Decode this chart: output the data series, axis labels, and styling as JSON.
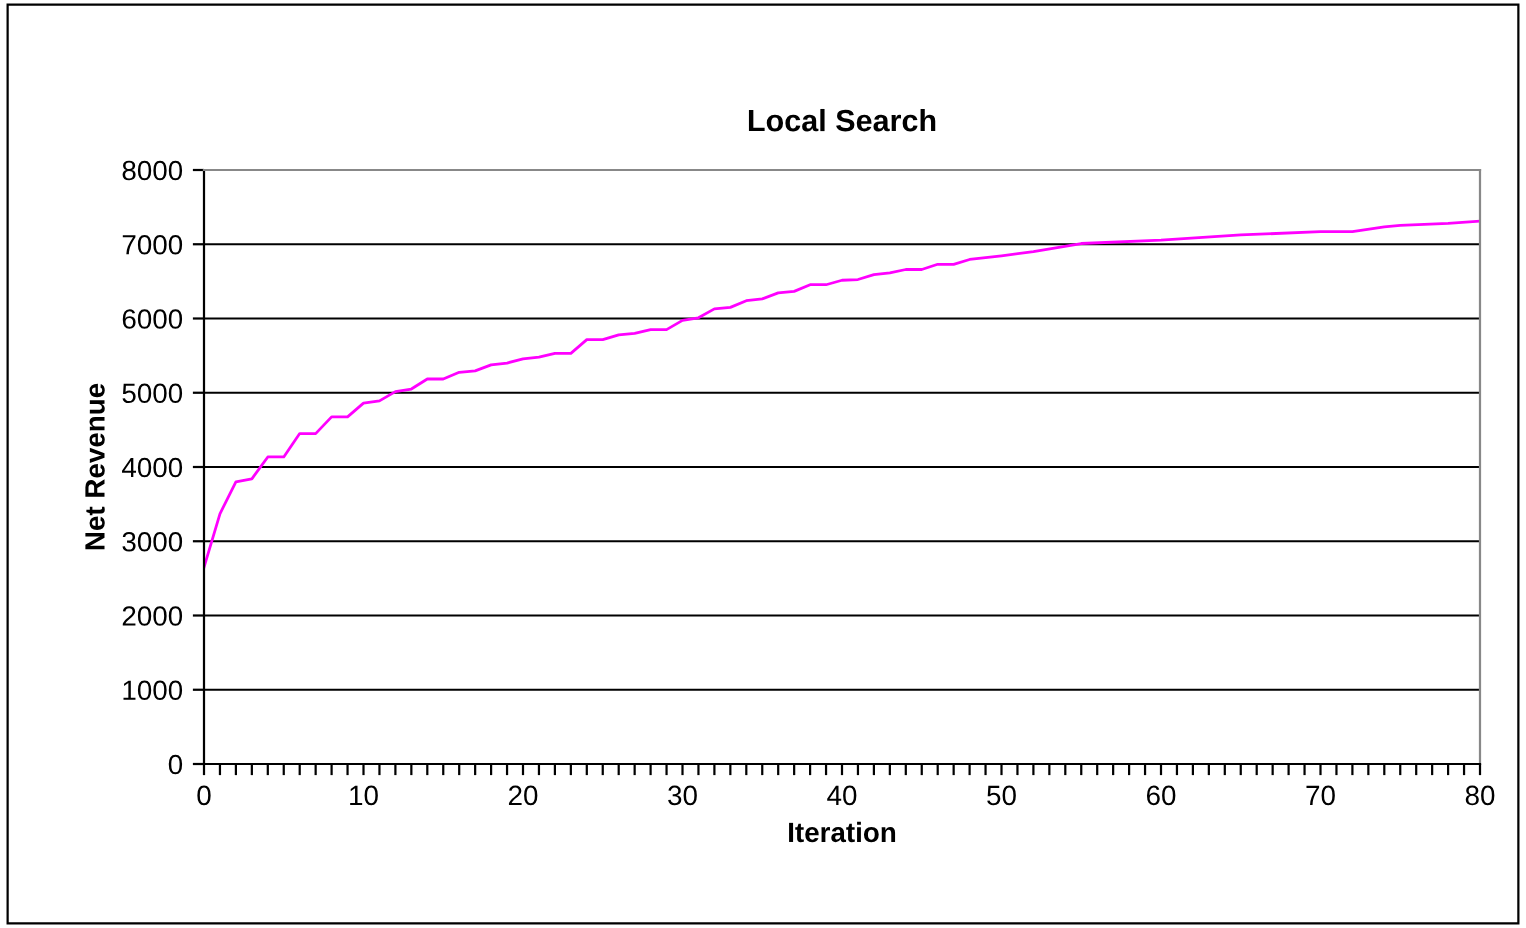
{
  "chart_data": {
    "type": "line",
    "title": "Local Search",
    "xlabel": "Iteration",
    "ylabel": "Net Revenue",
    "series": [
      {
        "color": "#ff00ff",
        "x": [
          0,
          1,
          2,
          3,
          4,
          5,
          6,
          7,
          8,
          9,
          10,
          11,
          12,
          13,
          14,
          15,
          16,
          17,
          18,
          19,
          20,
          21,
          22,
          23,
          24,
          25,
          26,
          27,
          28,
          29,
          30,
          31,
          32,
          33,
          34,
          35,
          36,
          37,
          38,
          39,
          40,
          41,
          42,
          43,
          44,
          45,
          46,
          47,
          48,
          50,
          52,
          55,
          60,
          65,
          70,
          72,
          74,
          75,
          78,
          80
        ],
        "values": [
          2650,
          3370,
          3800,
          3840,
          4135,
          4135,
          4450,
          4450,
          4675,
          4675,
          4860,
          4890,
          5015,
          5050,
          5185,
          5185,
          5275,
          5295,
          5375,
          5400,
          5455,
          5480,
          5530,
          5530,
          5715,
          5715,
          5780,
          5800,
          5850,
          5850,
          5975,
          6010,
          6130,
          6150,
          6240,
          6265,
          6345,
          6365,
          6455,
          6455,
          6515,
          6525,
          6590,
          6615,
          6660,
          6660,
          6730,
          6730,
          6795,
          6845,
          6900,
          7010,
          7055,
          7125,
          7170,
          7170,
          7235,
          7255,
          7280,
          7310
        ]
      }
    ],
    "xlim": [
      0,
      80
    ],
    "ylim": [
      0,
      8000
    ],
    "xticks": [
      0,
      {
        "value": 1,
        "label": null
      },
      {
        "value": 2,
        "label": null
      },
      {
        "value": 3,
        "label": null
      },
      {
        "value": 4,
        "label": null
      },
      {
        "value": 5,
        "label": null
      },
      {
        "value": 6,
        "label": null
      },
      {
        "value": 7,
        "label": null
      },
      {
        "value": 8,
        "label": null
      },
      {
        "value": 9,
        "label": null
      },
      10,
      {
        "value": 11,
        "label": null
      },
      {
        "value": 12,
        "label": null
      },
      {
        "value": 13,
        "label": null
      },
      {
        "value": 14,
        "label": null
      },
      {
        "value": 15,
        "label": null
      },
      {
        "value": 16,
        "label": null
      },
      {
        "value": 17,
        "label": null
      },
      {
        "value": 18,
        "label": null
      },
      {
        "value": 19,
        "label": null
      },
      20,
      {
        "value": 21,
        "label": null
      },
      {
        "value": 22,
        "label": null
      },
      {
        "value": 23,
        "label": null
      },
      {
        "value": 24,
        "label": null
      },
      {
        "value": 25,
        "label": null
      },
      {
        "value": 26,
        "label": null
      },
      {
        "value": 27,
        "label": null
      },
      {
        "value": 28,
        "label": null
      },
      {
        "value": 29,
        "label": null
      },
      30,
      {
        "value": 31,
        "label": null
      },
      {
        "value": 32,
        "label": null
      },
      {
        "value": 33,
        "label": null
      },
      {
        "value": 34,
        "label": null
      },
      {
        "value": 35,
        "label": null
      },
      {
        "value": 36,
        "label": null
      },
      {
        "value": 37,
        "label": null
      },
      {
        "value": 38,
        "label": null
      },
      {
        "value": 39,
        "label": null
      },
      40,
      {
        "value": 41,
        "label": null
      },
      {
        "value": 42,
        "label": null
      },
      {
        "value": 43,
        "label": null
      },
      {
        "value": 44,
        "label": null
      },
      {
        "value": 45,
        "label": null
      },
      {
        "value": 46,
        "label": null
      },
      {
        "value": 47,
        "label": null
      },
      {
        "value": 48,
        "label": null
      },
      {
        "value": 49,
        "label": null
      },
      50,
      {
        "value": 51,
        "label": null
      },
      {
        "value": 52,
        "label": null
      },
      {
        "value": 53,
        "label": null
      },
      {
        "value": 54,
        "label": null
      },
      {
        "value": 55,
        "label": null
      },
      {
        "value": 56,
        "label": null
      },
      {
        "value": 57,
        "label": null
      },
      {
        "value": 58,
        "label": null
      },
      {
        "value": 59,
        "label": null
      },
      60,
      {
        "value": 61,
        "label": null
      },
      {
        "value": 62,
        "label": null
      },
      {
        "value": 63,
        "label": null
      },
      {
        "value": 64,
        "label": null
      },
      {
        "value": 65,
        "label": null
      },
      {
        "value": 66,
        "label": null
      },
      {
        "value": 67,
        "label": null
      },
      {
        "value": 68,
        "label": null
      },
      {
        "value": 69,
        "label": null
      },
      70,
      {
        "value": 71,
        "label": null
      },
      {
        "value": 72,
        "label": null
      },
      {
        "value": 73,
        "label": null
      },
      {
        "value": 74,
        "label": null
      },
      {
        "value": 75,
        "label": null
      },
      {
        "value": 76,
        "label": null
      },
      {
        "value": 77,
        "label": null
      },
      {
        "value": 78,
        "label": null
      },
      {
        "value": 79,
        "label": null
      },
      80
    ],
    "yticks": [
      0,
      1000,
      2000,
      3000,
      4000,
      5000,
      6000,
      7000,
      8000
    ],
    "grid": "y",
    "marker": "none",
    "line_style": "solid"
  }
}
